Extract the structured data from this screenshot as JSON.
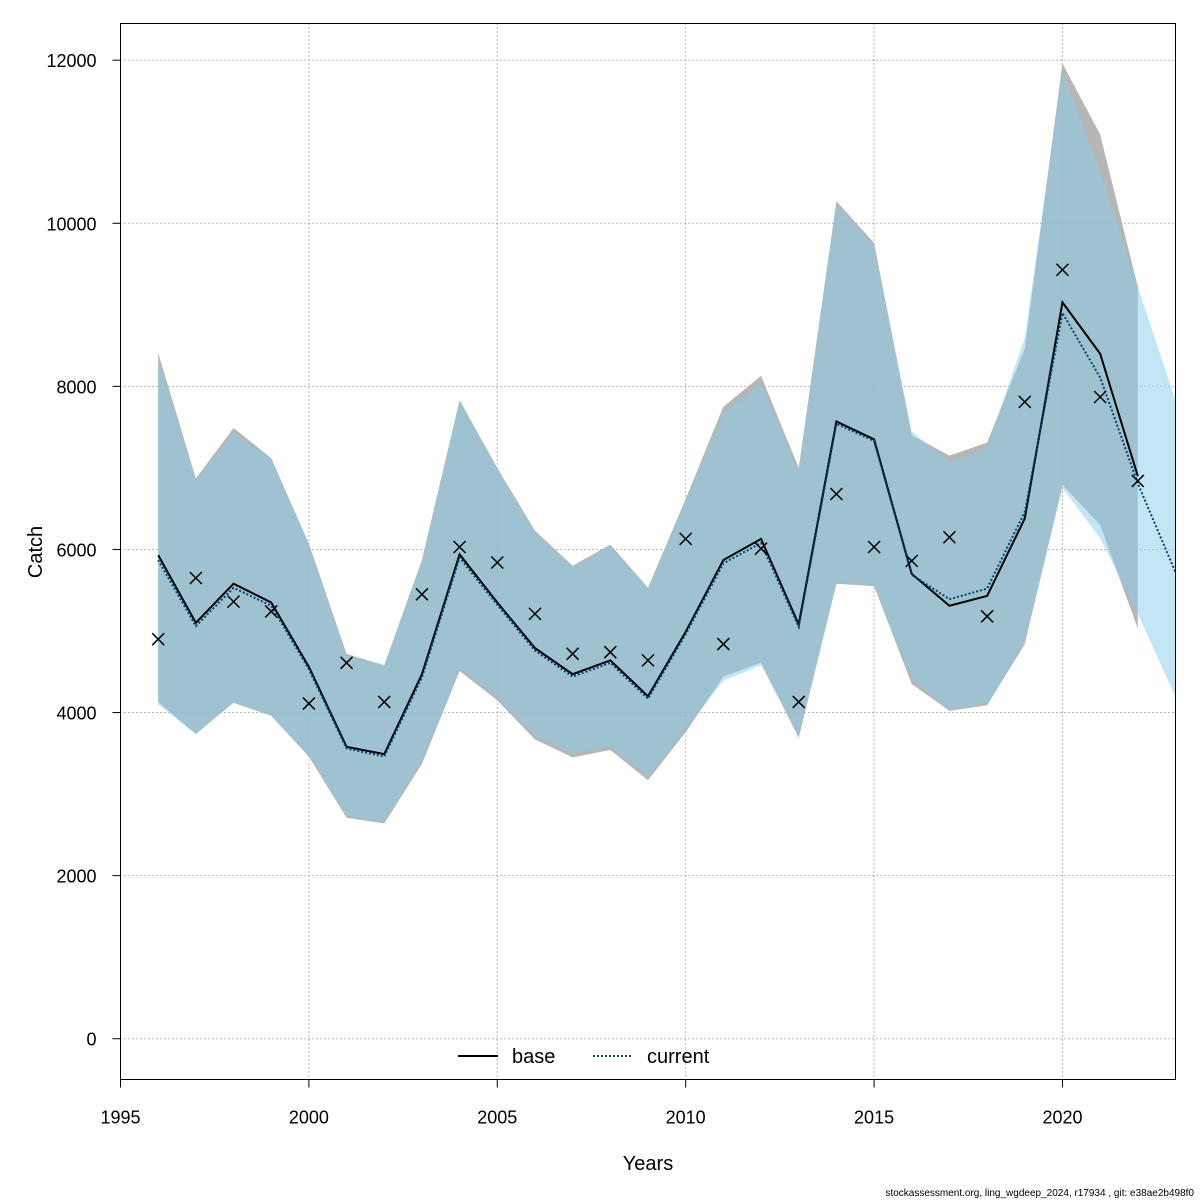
{
  "chart_data": {
    "type": "line",
    "xlabel": "Years",
    "ylabel": "Catch",
    "xlim": [
      1995,
      2023
    ],
    "ylim": [
      -500,
      12450
    ],
    "x_ticks": [
      1995,
      2000,
      2005,
      2010,
      2015,
      2020
    ],
    "y_ticks": [
      0,
      2000,
      4000,
      6000,
      8000,
      10000,
      12000
    ],
    "grid": true,
    "legend_position": "bottom-center",
    "series": [
      {
        "name": "base",
        "style": "solid",
        "color": "#000000",
        "band_color": "#a9a9a9",
        "x": [
          1996,
          1997,
          1998,
          1999,
          2000,
          2001,
          2002,
          2003,
          2004,
          2005,
          2006,
          2007,
          2008,
          2009,
          2010,
          2011,
          2012,
          2013,
          2014,
          2015,
          2016,
          2017,
          2018,
          2019,
          2020,
          2021,
          2022
        ],
        "values": [
          5930,
          5100,
          5580,
          5350,
          4560,
          3580,
          3490,
          4470,
          5940,
          5350,
          4790,
          4470,
          4640,
          4200,
          4990,
          5870,
          6130,
          5080,
          7570,
          7350,
          5700,
          5310,
          5430,
          6380,
          9030,
          8400,
          6900
        ],
        "lower": [
          4130,
          3740,
          4120,
          3960,
          3460,
          2710,
          2640,
          3370,
          4510,
          4150,
          3670,
          3450,
          3540,
          3170,
          3760,
          4440,
          4610,
          3690,
          5580,
          5550,
          4350,
          4020,
          4090,
          4840,
          6790,
          6300,
          5030
        ],
        "upper": [
          8410,
          6870,
          7490,
          7120,
          6070,
          4720,
          4580,
          5870,
          7830,
          7000,
          6230,
          5800,
          6060,
          5530,
          6620,
          7750,
          8130,
          7000,
          10270,
          9760,
          7400,
          7150,
          7310,
          8460,
          11960,
          11090,
          9220
        ]
      },
      {
        "name": "current",
        "style": "dotted",
        "color": "#00427a",
        "band_color": "#87ceeb",
        "x": [
          1996,
          1997,
          1998,
          1999,
          2000,
          2001,
          2002,
          2003,
          2004,
          2005,
          2006,
          2007,
          2008,
          2009,
          2010,
          2011,
          2012,
          2013,
          2014,
          2015,
          2016,
          2017,
          2018,
          2019,
          2020,
          2021,
          2022,
          2023
        ],
        "values": [
          5870,
          5060,
          5530,
          5310,
          4530,
          3560,
          3460,
          4430,
          5900,
          5320,
          4760,
          4440,
          4610,
          4170,
          4960,
          5830,
          6080,
          5050,
          7540,
          7330,
          5690,
          5390,
          5520,
          6460,
          8900,
          8110,
          6810,
          5720
        ],
        "lower": [
          4100,
          3730,
          4130,
          3970,
          3480,
          2730,
          2660,
          3400,
          4540,
          4190,
          3710,
          3490,
          3580,
          3210,
          3800,
          4390,
          4580,
          3720,
          5590,
          5560,
          4400,
          4040,
          4110,
          4860,
          6750,
          6140,
          5210,
          4190
        ],
        "upper": [
          8330,
          6850,
          7430,
          7120,
          6050,
          4700,
          4580,
          5840,
          7810,
          6980,
          6200,
          5790,
          6040,
          5520,
          6600,
          7670,
          8040,
          6950,
          10240,
          9720,
          7450,
          7070,
          7250,
          8600,
          11860,
          10640,
          9220,
          7830
        ]
      }
    ],
    "observed": {
      "marker": "x",
      "x": [
        1996,
        1997,
        1998,
        1999,
        2000,
        2001,
        2002,
        2003,
        2004,
        2005,
        2006,
        2007,
        2008,
        2009,
        2010,
        2011,
        2012,
        2013,
        2014,
        2015,
        2016,
        2017,
        2018,
        2019,
        2020,
        2021,
        2022
      ],
      "values": [
        4900,
        5650,
        5360,
        5240,
        4110,
        4610,
        4130,
        5450,
        6030,
        5840,
        5210,
        4720,
        4740,
        4640,
        6130,
        4840,
        6010,
        4130,
        6680,
        6030,
        5860,
        6150,
        5180,
        7810,
        9430,
        7870,
        6840
      ]
    }
  },
  "footer": "stockassessment.org, ling_wgdeep_2024, r17934 , git: e38ae2b498f0"
}
